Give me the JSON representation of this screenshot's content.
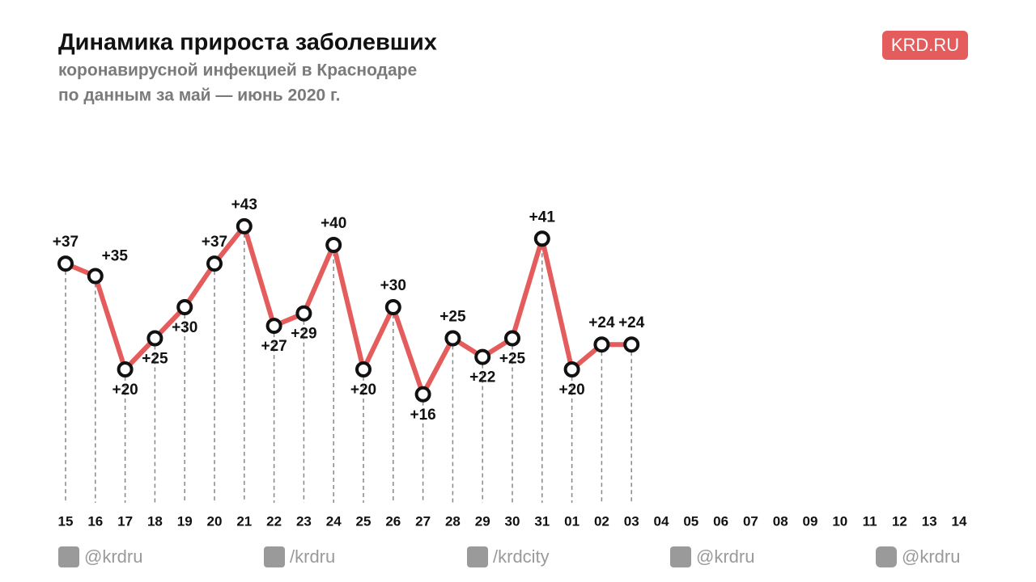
{
  "chart_data": {
    "type": "line",
    "title": "Динамика прироста заболевших",
    "subtitle": [
      "коронавирусной инфекцией в Краснодаре",
      "по данным за май — июнь 2020 г."
    ],
    "brand": "KRD.RU",
    "categories": [
      "15",
      "16",
      "17",
      "18",
      "19",
      "20",
      "21",
      "22",
      "23",
      "24",
      "25",
      "26",
      "27",
      "28",
      "29",
      "30",
      "31",
      "01",
      "02",
      "03",
      "04",
      "05",
      "06",
      "07",
      "08",
      "09",
      "10",
      "11",
      "12",
      "13",
      "14"
    ],
    "series": [
      {
        "color": "#e45c5c",
        "values": [
          37,
          35,
          20,
          25,
          30,
          37,
          43,
          27,
          29,
          40,
          20,
          30,
          16,
          25,
          22,
          25,
          41,
          20,
          24,
          24,
          null,
          null,
          null,
          null,
          null,
          null,
          null,
          null,
          null,
          null,
          null
        ],
        "value_labels": [
          "+37",
          "+35",
          "+20",
          "+25",
          "+30",
          "+37",
          "+43",
          "+27",
          "+29",
          "+40",
          "+20",
          "+30",
          "+16",
          "+25",
          "+22",
          "+25",
          "+41",
          "+20",
          "+24",
          "+24",
          null,
          null,
          null,
          null,
          null,
          null,
          null,
          null,
          null,
          null,
          null
        ]
      }
    ],
    "footer": [
      "@krdru",
      "/krdru",
      "/krdcity",
      "@krdru",
      "@krdru"
    ]
  }
}
